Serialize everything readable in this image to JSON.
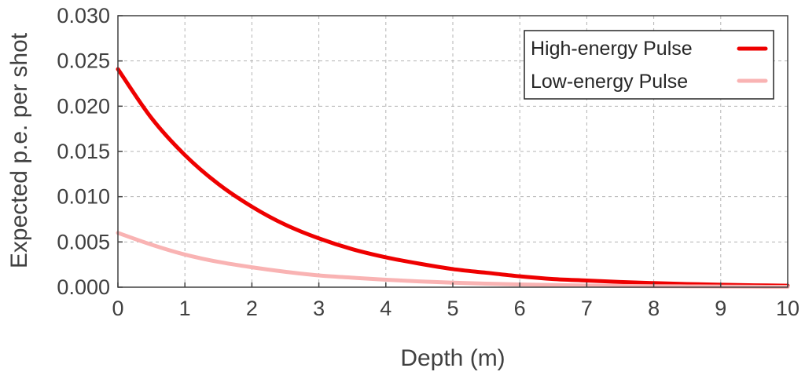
{
  "chart_data": {
    "type": "line",
    "xlabel": "Depth (m)",
    "ylabel": "Expected p.e. per shot",
    "xlim": [
      0,
      10
    ],
    "ylim": [
      0,
      0.03
    ],
    "x_ticks": [
      "0",
      "1",
      "2",
      "3",
      "4",
      "5",
      "6",
      "7",
      "8",
      "9",
      "10"
    ],
    "y_ticks": [
      "0.000",
      "0.005",
      "0.010",
      "0.015",
      "0.020",
      "0.025",
      "0.030"
    ],
    "grid": true,
    "legend_position": "top-right",
    "x": [
      0,
      0.5,
      1,
      1.5,
      2,
      2.5,
      3,
      3.5,
      4,
      4.5,
      5,
      5.5,
      6,
      6.5,
      7,
      7.5,
      8,
      8.5,
      9,
      9.5,
      10
    ],
    "series": [
      {
        "name": "High-energy Pulse",
        "color": "#ee0000",
        "values": [
          0.0241,
          0.0187,
          0.0146,
          0.0114,
          0.0089,
          0.0069,
          0.0054,
          0.0042,
          0.0033,
          0.0026,
          0.002,
          0.0016,
          0.0012,
          0.0009,
          0.00074,
          0.00057,
          0.00045,
          0.00035,
          0.00027,
          0.00021,
          0.00016
        ]
      },
      {
        "name": "Low-energy Pulse",
        "color": "#f9b3b3",
        "values": [
          0.006,
          0.0047,
          0.0036,
          0.0028,
          0.0022,
          0.0017,
          0.0013,
          0.00105,
          0.00082,
          0.00064,
          0.0005,
          0.00039,
          0.0003,
          0.00024,
          0.00018,
          0.00014,
          0.00011,
          9e-05,
          7e-05,
          5e-05,
          4e-05
        ]
      }
    ]
  }
}
